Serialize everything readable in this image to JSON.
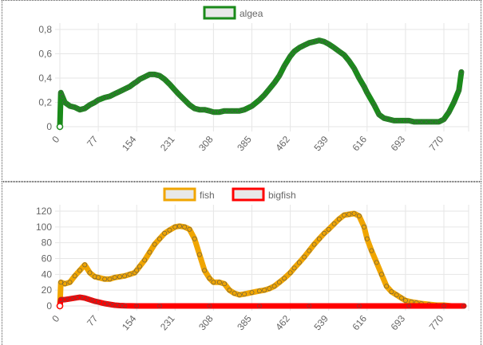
{
  "chart_data": [
    {
      "type": "line",
      "legend_position": "top",
      "grid": true,
      "x_ticks": [
        "0",
        "77",
        "154",
        "231",
        "308",
        "385",
        "462",
        "539",
        "616",
        "693",
        "770"
      ],
      "x_range": [
        0,
        810
      ],
      "ylim": [
        0,
        0.8
      ],
      "y_ticks": [
        "0",
        "0,2",
        "0,4",
        "0,6",
        "0,8"
      ],
      "y_tick_values": [
        0,
        0.2,
        0.4,
        0.6,
        0.8
      ],
      "series": [
        {
          "name": "algea",
          "color": "#1a8a1a",
          "x": [
            0,
            2,
            5,
            10,
            20,
            30,
            40,
            50,
            60,
            70,
            77,
            90,
            100,
            110,
            120,
            130,
            140,
            150,
            154,
            160,
            170,
            180,
            190,
            200,
            210,
            220,
            231,
            240,
            250,
            260,
            270,
            280,
            290,
            300,
            308,
            320,
            330,
            340,
            350,
            360,
            370,
            385,
            400,
            410,
            420,
            430,
            440,
            450,
            462,
            470,
            480,
            490,
            500,
            510,
            520,
            530,
            539,
            550,
            560,
            570,
            580,
            590,
            600,
            610,
            616,
            630,
            640,
            650,
            660,
            670,
            680,
            693,
            700,
            710,
            720,
            730,
            740,
            750,
            760,
            770,
            780,
            790,
            800,
            805
          ],
          "y": [
            0.0,
            0.28,
            0.25,
            0.2,
            0.17,
            0.16,
            0.14,
            0.15,
            0.18,
            0.2,
            0.22,
            0.24,
            0.25,
            0.27,
            0.29,
            0.31,
            0.33,
            0.36,
            0.37,
            0.39,
            0.41,
            0.43,
            0.43,
            0.42,
            0.39,
            0.35,
            0.3,
            0.26,
            0.22,
            0.18,
            0.15,
            0.14,
            0.14,
            0.13,
            0.12,
            0.12,
            0.13,
            0.13,
            0.13,
            0.13,
            0.14,
            0.17,
            0.22,
            0.26,
            0.31,
            0.36,
            0.42,
            0.5,
            0.58,
            0.62,
            0.65,
            0.67,
            0.69,
            0.7,
            0.71,
            0.7,
            0.68,
            0.65,
            0.62,
            0.59,
            0.54,
            0.48,
            0.4,
            0.33,
            0.28,
            0.18,
            0.1,
            0.07,
            0.06,
            0.05,
            0.05,
            0.05,
            0.05,
            0.04,
            0.04,
            0.04,
            0.04,
            0.04,
            0.04,
            0.06,
            0.12,
            0.2,
            0.3,
            0.45
          ]
        }
      ]
    },
    {
      "type": "line",
      "legend_position": "top",
      "grid": true,
      "x_ticks": [
        "0",
        "77",
        "154",
        "231",
        "308",
        "385",
        "462",
        "539",
        "616",
        "693",
        "770"
      ],
      "x_range": [
        0,
        810
      ],
      "ylim": [
        0,
        120
      ],
      "y_ticks": [
        "0",
        "20",
        "40",
        "60",
        "80",
        "100",
        "120"
      ],
      "y_tick_values": [
        0,
        20,
        40,
        60,
        80,
        100,
        120
      ],
      "series": [
        {
          "name": "fish",
          "color": "#f0a500",
          "x": [
            0,
            2,
            10,
            20,
            30,
            40,
            50,
            60,
            70,
            77,
            90,
            100,
            110,
            120,
            130,
            140,
            150,
            154,
            160,
            170,
            180,
            190,
            200,
            210,
            220,
            231,
            240,
            250,
            260,
            270,
            280,
            290,
            300,
            308,
            320,
            330,
            340,
            350,
            360,
            370,
            385,
            400,
            410,
            420,
            430,
            440,
            450,
            462,
            470,
            480,
            490,
            500,
            510,
            520,
            530,
            539,
            550,
            560,
            570,
            580,
            590,
            600,
            610,
            616,
            625,
            635,
            645,
            655,
            665,
            675,
            685,
            693,
            705,
            715,
            725,
            740,
            755,
            770,
            785,
            800,
            810
          ],
          "y": [
            0,
            30,
            28,
            30,
            38,
            45,
            52,
            42,
            37,
            36,
            34,
            34,
            36,
            37,
            38,
            40,
            42,
            45,
            50,
            58,
            68,
            78,
            85,
            92,
            96,
            100,
            101,
            100,
            97,
            85,
            65,
            45,
            35,
            30,
            30,
            28,
            20,
            16,
            14,
            15,
            17,
            19,
            20,
            22,
            25,
            30,
            35,
            42,
            48,
            55,
            62,
            70,
            78,
            85,
            92,
            97,
            104,
            110,
            115,
            116,
            117,
            114,
            100,
            85,
            70,
            55,
            40,
            25,
            18,
            14,
            10,
            7,
            5,
            4,
            3,
            2,
            1,
            1,
            0,
            0,
            0
          ]
        },
        {
          "name": "bigfish",
          "color": "#ff0000",
          "x": [
            0,
            2,
            10,
            20,
            30,
            40,
            50,
            60,
            70,
            77,
            90,
            100,
            110,
            120,
            130,
            154,
            200,
            300,
            400,
            500,
            600,
            700,
            770,
            810
          ],
          "y": [
            0,
            8,
            8,
            9,
            10,
            11,
            10,
            8,
            6,
            5,
            3,
            2,
            1,
            0.5,
            0.2,
            0,
            0,
            0,
            0,
            0,
            0,
            0,
            0,
            0
          ]
        }
      ]
    }
  ]
}
